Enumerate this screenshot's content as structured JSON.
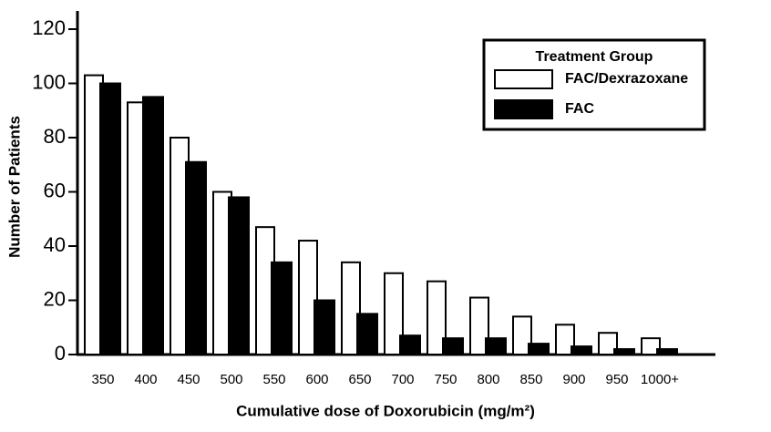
{
  "chart_data": {
    "type": "bar",
    "xlabel": "Cumulative dose of Doxorubicin (mg/m²)",
    "ylabel": "Number of Patients",
    "categories": [
      "350",
      "400",
      "450",
      "500",
      "550",
      "600",
      "650",
      "700",
      "750",
      "800",
      "850",
      "900",
      "950",
      "1000+"
    ],
    "series": [
      {
        "name": "FAC/Dexrazoxane",
        "color": "#ffffff",
        "values": [
          103,
          93,
          80,
          60,
          47,
          42,
          34,
          30,
          27,
          21,
          14,
          11,
          8,
          6
        ]
      },
      {
        "name": "FAC",
        "color": "#000000",
        "values": [
          100,
          95,
          71,
          58,
          34,
          20,
          15,
          7,
          6,
          6,
          4,
          3,
          2,
          2
        ]
      }
    ],
    "legend_title": "Treatment Group",
    "legend": "top-right",
    "ylim": [
      0,
      120
    ],
    "yticks": [
      0,
      20,
      40,
      60,
      80,
      100,
      120
    ]
  }
}
